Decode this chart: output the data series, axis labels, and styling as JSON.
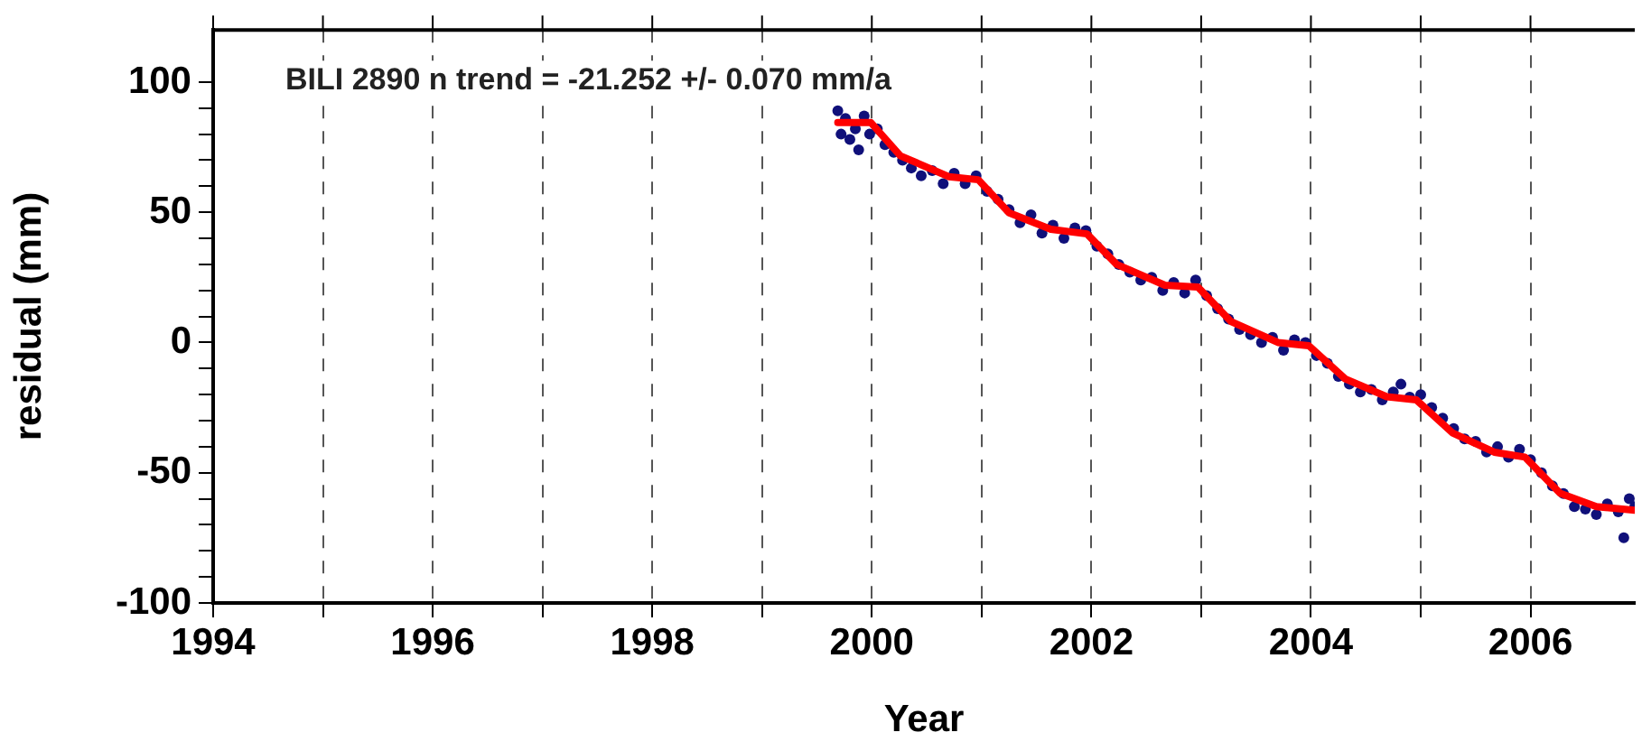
{
  "chart_data": {
    "type": "scatter",
    "xlabel": "Year",
    "ylabel": "residual (mm)",
    "annotations": [
      "BILI 2890 n trend = -21.252 +/- 0.070 mm/a"
    ],
    "xlim": [
      1994,
      2006.95
    ],
    "ylim": [
      -100,
      120
    ],
    "xticks": [
      1994,
      {
        "value": 1995,
        "label": null
      },
      1996,
      {
        "value": 1997,
        "label": null
      },
      1998,
      {
        "value": 1999,
        "label": null
      },
      2000,
      {
        "value": 2001,
        "label": null
      },
      2002,
      {
        "value": 2003,
        "label": null
      },
      2004,
      {
        "value": 2005,
        "label": null
      },
      2006
    ],
    "yticks": [
      -100,
      {
        "value": -90,
        "label": null
      },
      {
        "value": -80,
        "label": null
      },
      {
        "value": -70,
        "label": null
      },
      {
        "value": -60,
        "label": null
      },
      -50,
      {
        "value": -40,
        "label": null
      },
      {
        "value": -30,
        "label": null
      },
      {
        "value": -20,
        "label": null
      },
      {
        "value": -10,
        "label": null
      },
      0,
      {
        "value": 10,
        "label": null
      },
      {
        "value": 20,
        "label": null
      },
      {
        "value": 30,
        "label": null
      },
      {
        "value": 40,
        "label": null
      },
      50,
      {
        "value": 60,
        "label": null
      },
      {
        "value": 70,
        "label": null
      },
      {
        "value": 80,
        "label": null
      },
      {
        "value": 90,
        "label": null
      },
      100
    ],
    "grid": "x",
    "legend": false,
    "series": [
      {
        "marker": "circle",
        "color": "#10107a",
        "x": [
          1999.69,
          1999.72,
          1999.76,
          1999.8,
          1999.85,
          1999.88,
          1999.93,
          1999.98,
          2000.05,
          2000.12,
          2000.2,
          2000.28,
          2000.36,
          2000.45,
          2000.55,
          2000.65,
          2000.75,
          2000.85,
          2000.95,
          2001.05,
          2001.15,
          2001.25,
          2001.35,
          2001.45,
          2001.55,
          2001.65,
          2001.75,
          2001.85,
          2001.95,
          2002.05,
          2002.15,
          2002.25,
          2002.35,
          2002.45,
          2002.55,
          2002.65,
          2002.75,
          2002.85,
          2002.95,
          2003.05,
          2003.15,
          2003.25,
          2003.35,
          2003.45,
          2003.55,
          2003.65,
          2003.75,
          2003.85,
          2003.95,
          2004.05,
          2004.15,
          2004.25,
          2004.35,
          2004.45,
          2004.55,
          2004.65,
          2004.75,
          2004.82,
          2004.9,
          2005.0,
          2005.1,
          2005.2,
          2005.3,
          2005.4,
          2005.5,
          2005.6,
          2005.7,
          2005.8,
          2005.9,
          2006.0,
          2006.1,
          2006.2,
          2006.3,
          2006.4,
          2006.5,
          2006.6,
          2006.7,
          2006.8,
          2006.85,
          2006.9,
          2006.95
        ],
        "values": [
          89,
          80,
          86,
          78,
          82,
          74,
          87,
          80,
          82,
          76,
          73,
          70,
          67,
          64,
          66,
          61,
          65,
          61,
          64,
          58,
          55,
          51,
          46,
          49,
          42,
          45,
          40,
          44,
          43,
          37,
          34,
          30,
          27,
          24,
          25,
          20,
          23,
          19,
          24,
          18,
          13,
          9,
          5,
          3,
          0,
          2,
          -3,
          1,
          0,
          -5,
          -8,
          -13,
          -16,
          -19,
          -18,
          -22,
          -19,
          -16,
          -21,
          -20,
          -25,
          -29,
          -33,
          -37,
          -38,
          -42,
          -40,
          -44,
          -41,
          -45,
          -50,
          -55,
          -58,
          -63,
          -64,
          -66,
          -62,
          -65,
          -75,
          -60,
          -63
        ]
      },
      {
        "type": "line",
        "marker": "none",
        "color": "#ff0000",
        "x": [
          1999.69,
          1999.99,
          2000.26,
          2000.7,
          2000.97,
          2001.25,
          2001.63,
          2001.96,
          2002.23,
          2002.67,
          2002.97,
          2003.27,
          2003.7,
          2003.98,
          2004.31,
          2004.69,
          2004.96,
          2005.29,
          2005.67,
          2005.95,
          2006.27,
          2006.6,
          2006.95
        ],
        "values": [
          84.5,
          84.5,
          71.7,
          63.7,
          62.5,
          49.8,
          43.5,
          41.7,
          30,
          22,
          21.3,
          8.1,
          0,
          -1.2,
          -13.9,
          -20.8,
          -22,
          -34.7,
          -42.1,
          -44,
          -57.9,
          -63,
          -64.4
        ]
      }
    ]
  }
}
